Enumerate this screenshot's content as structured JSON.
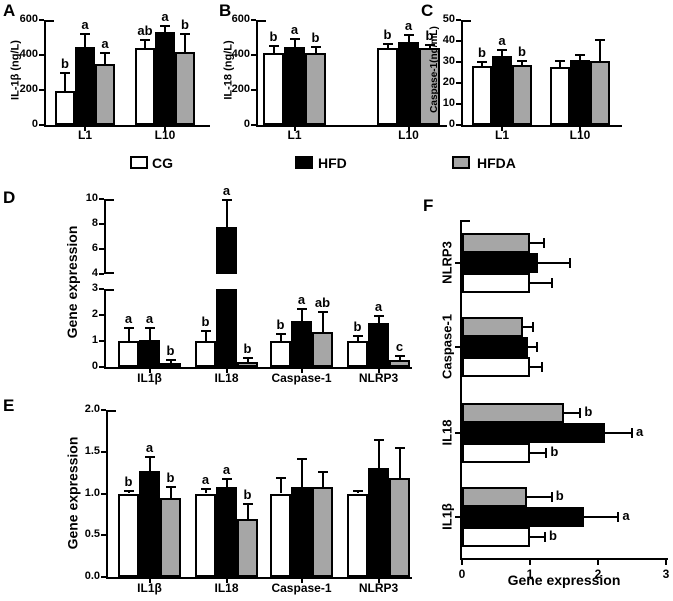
{
  "figure": {
    "background": "#ffffff"
  },
  "colors": {
    "axis": "#000000",
    "white_bar": "#ffffff",
    "black_bar": "#000000",
    "gray_bar": "#a6a6a6"
  },
  "legend": {
    "items": [
      {
        "label": "CG",
        "color": "#ffffff"
      },
      {
        "label": "HFD",
        "color": "#000000"
      },
      {
        "label": "HFDA",
        "color": "#a6a6a6"
      }
    ]
  },
  "chart_data": [
    {
      "id": "A",
      "panel_label": "A",
      "type": "bar",
      "orientation": "vertical",
      "ylabel": "IL-1β (ng/L)",
      "ylim": [
        0,
        600
      ],
      "tick_values": [
        0,
        200,
        400,
        600
      ],
      "tick_labels": [
        "0",
        "200",
        "400",
        "600"
      ],
      "categories": [
        "L1",
        "L10"
      ],
      "series": [
        {
          "name": "CG",
          "values": [
            195,
            440
          ],
          "errors": [
            100,
            48
          ],
          "letters": [
            "b",
            "ab"
          ]
        },
        {
          "name": "HFD",
          "values": [
            445,
            530
          ],
          "errors": [
            73,
            38
          ],
          "letters": [
            "a",
            "a"
          ]
        },
        {
          "name": "HFDA",
          "values": [
            350,
            420
          ],
          "errors": [
            60,
            100
          ],
          "letters": [
            "a",
            "b"
          ]
        }
      ]
    },
    {
      "id": "B",
      "panel_label": "B",
      "type": "bar",
      "orientation": "vertical",
      "ylabel": "IL-18 (ng/L)",
      "ylim": [
        0,
        600
      ],
      "tick_values": [
        0,
        200,
        400,
        600
      ],
      "tick_labels": [
        "0",
        "200",
        "400",
        "600"
      ],
      "categories": [
        "L1",
        "L10"
      ],
      "series": [
        {
          "name": "CG",
          "values": [
            410,
            440
          ],
          "errors": [
            40,
            22
          ],
          "letters": [
            "b",
            "b"
          ]
        },
        {
          "name": "HFD",
          "values": [
            445,
            472
          ],
          "errors": [
            45,
            45
          ],
          "letters": [
            "a",
            "a"
          ]
        },
        {
          "name": "HFDA",
          "values": [
            412,
            440
          ],
          "errors": [
            35,
            20
          ],
          "letters": [
            "b",
            "b"
          ]
        }
      ]
    },
    {
      "id": "C",
      "panel_label": "C",
      "type": "bar",
      "orientation": "vertical",
      "ylabel": "Caspase-1(ng/mL)",
      "ylim": [
        0,
        50
      ],
      "tick_values": [
        0,
        10,
        20,
        30,
        40,
        50
      ],
      "tick_labels": [
        "0",
        "10",
        "20",
        "30",
        "40",
        "50"
      ],
      "categories": [
        "L1",
        "L10"
      ],
      "series": [
        {
          "name": "CG",
          "values": [
            28,
            27.5
          ],
          "errors": [
            2,
            3
          ],
          "letters": [
            "b",
            ""
          ]
        },
        {
          "name": "HFD",
          "values": [
            33,
            31
          ],
          "errors": [
            2.8,
            2.5
          ],
          "letters": [
            "a",
            ""
          ]
        },
        {
          "name": "HFDA",
          "values": [
            28.5,
            30.5
          ],
          "errors": [
            2,
            10
          ],
          "letters": [
            "b",
            ""
          ]
        }
      ]
    },
    {
      "id": "D",
      "panel_label": "D",
      "type": "bar",
      "orientation": "vertical",
      "ylabel": "Gene expression",
      "axis_break": {
        "lower_range": [
          0,
          3
        ],
        "upper_range": [
          4,
          10
        ]
      },
      "lower_tick_values": [
        0,
        1,
        2,
        3
      ],
      "lower_tick_labels": [
        "0",
        "1",
        "2",
        "3"
      ],
      "upper_tick_values": [
        4,
        6,
        8,
        10
      ],
      "upper_tick_labels": [
        "4",
        "6",
        "8",
        "10"
      ],
      "categories": [
        "IL1β",
        "IL18",
        "Caspase-1",
        "NLRP3"
      ],
      "series": [
        {
          "name": "CG",
          "values": [
            1.0,
            1.0,
            1.0,
            1.0
          ],
          "errors": [
            0.5,
            0.38,
            0.28,
            0.2
          ],
          "letters": [
            "a",
            "b",
            "b",
            "b"
          ]
        },
        {
          "name": "HFD",
          "values": [
            1.05,
            7.8,
            1.78,
            1.68
          ],
          "errors": [
            0.45,
            2.1,
            0.45,
            0.28
          ],
          "letters": [
            "a",
            "a",
            "a",
            "a"
          ]
        },
        {
          "name": "HFDA",
          "values": [
            0.15,
            0.18,
            1.35,
            0.28
          ],
          "errors": [
            0.12,
            0.15,
            0.75,
            0.15
          ],
          "letters": [
            "b",
            "b",
            "ab",
            "c"
          ]
        }
      ]
    },
    {
      "id": "E",
      "panel_label": "E",
      "type": "bar",
      "orientation": "vertical",
      "ylabel": "Gene expression",
      "ylim": [
        0,
        2.0
      ],
      "tick_values": [
        0,
        0.5,
        1.0,
        1.5,
        2.0
      ],
      "tick_labels": [
        "0.0",
        "0.5",
        "1.0",
        "1.5",
        "2.0"
      ],
      "categories": [
        "IL1β",
        "IL18",
        "Caspase-1",
        "NLRP3"
      ],
      "series": [
        {
          "name": "CG",
          "values": [
            1.0,
            1.0,
            1.0,
            1.0
          ],
          "errors": [
            0.03,
            0.05,
            0.19,
            0.03
          ],
          "letters": [
            "b",
            "a",
            "",
            ""
          ]
        },
        {
          "name": "HFD",
          "values": [
            1.27,
            1.08,
            1.08,
            1.3
          ],
          "errors": [
            0.17,
            0.09,
            0.33,
            0.34
          ],
          "letters": [
            "a",
            "a",
            "",
            ""
          ]
        },
        {
          "name": "HFDA",
          "values": [
            0.95,
            0.7,
            1.08,
            1.19
          ],
          "errors": [
            0.13,
            0.18,
            0.18,
            0.35
          ],
          "letters": [
            "b",
            "b",
            "",
            ""
          ]
        }
      ]
    },
    {
      "id": "F",
      "panel_label": "F",
      "type": "bar",
      "orientation": "horizontal",
      "xlabel": "Gene expression",
      "xlim": [
        0,
        3
      ],
      "tick_values": [
        0,
        1,
        2,
        3
      ],
      "tick_labels": [
        "0",
        "1",
        "2",
        "3"
      ],
      "categories": [
        "IL1β",
        "IL18",
        "Caspase-1",
        "NLRP3"
      ],
      "series": [
        {
          "name": "CG",
          "values": [
            1.0,
            1.0,
            1.0,
            1.0
          ],
          "errors": [
            0.22,
            0.24,
            0.18,
            0.33
          ],
          "letters": [
            "b",
            "b",
            "",
            ""
          ]
        },
        {
          "name": "HFD",
          "values": [
            1.8,
            2.1,
            0.97,
            1.12
          ],
          "errors": [
            0.5,
            0.4,
            0.13,
            0.47
          ],
          "letters": [
            "a",
            "a",
            "",
            ""
          ]
        },
        {
          "name": "HFDA",
          "values": [
            0.95,
            1.5,
            0.9,
            1.0
          ],
          "errors": [
            0.37,
            0.24,
            0.15,
            0.2
          ],
          "letters": [
            "b",
            "b",
            "",
            ""
          ]
        }
      ]
    }
  ]
}
